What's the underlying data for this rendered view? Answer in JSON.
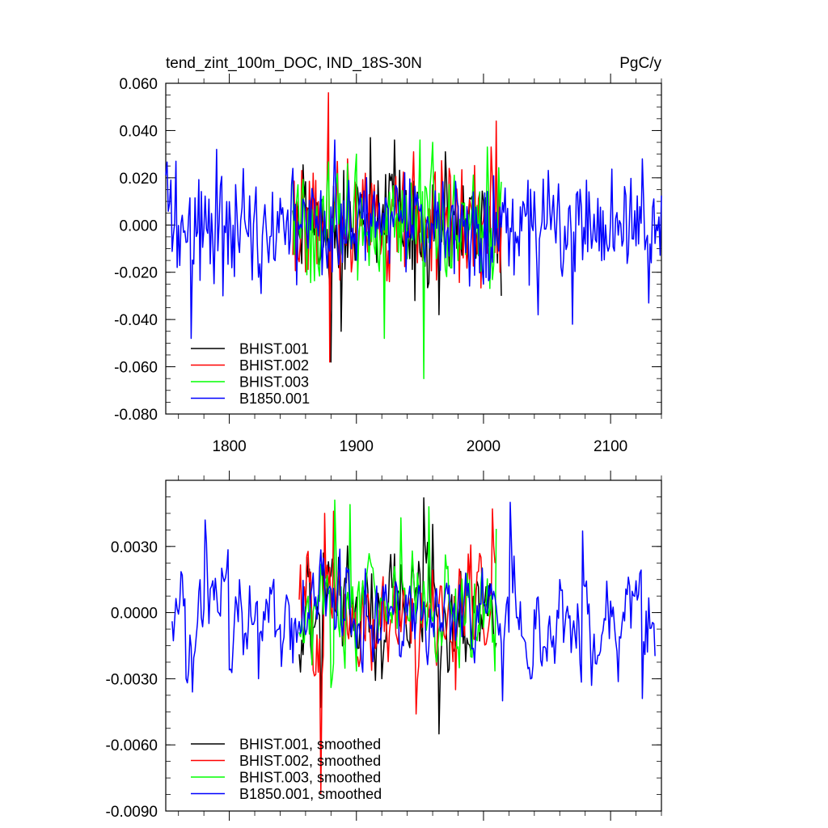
{
  "colors": {
    "BHIST.001": "#000000",
    "BHIST.002": "#ff0000",
    "BHIST.003": "#00ff00",
    "B1850.001": "#0000ff"
  },
  "chart_data": [
    {
      "type": "line",
      "title": "tend_zint_100m_DOC, IND_18S-30N",
      "units": "PgC/y",
      "xlim": [
        1750,
        2140
      ],
      "ylim": [
        -0.08,
        0.06
      ],
      "xticks": [
        1800,
        1900,
        2000,
        2100
      ],
      "xtick_labels": [
        "1800",
        "1900",
        "2000",
        "2100"
      ],
      "yticks": [
        0.06,
        0.04,
        0.02,
        0.0,
        -0.02,
        -0.04,
        -0.06,
        -0.08
      ],
      "ytick_labels": [
        "0.060",
        "0.040",
        "0.020",
        "0.000",
        "-0.020",
        "-0.040",
        "-0.060",
        "-0.080"
      ],
      "legend": [
        "BHIST.001",
        "BHIST.002",
        "BHIST.003",
        "B1850.001"
      ],
      "legend_position": "bottom-left",
      "series": [
        {
          "name": "BHIST.001",
          "x_start": 1850,
          "x_end": 2014,
          "peaks": [
            [
              1880,
              -0.058
            ],
            [
              1888,
              -0.045
            ],
            [
              1911,
              0.037
            ],
            [
              1930,
              0.036
            ],
            [
              1946,
              -0.032
            ],
            [
              1965,
              -0.038
            ],
            [
              1970,
              0.031
            ],
            [
              2014,
              -0.03
            ]
          ]
        },
        {
          "name": "BHIST.002",
          "x_start": 1850,
          "x_end": 2014,
          "peaks": [
            [
              1878,
              0.056
            ],
            [
              1879,
              -0.058
            ],
            [
              1893,
              0.028
            ],
            [
              1945,
              0.031
            ],
            [
              2006,
              0.033
            ],
            [
              2010,
              0.044
            ],
            [
              2013,
              -0.02
            ]
          ]
        },
        {
          "name": "BHIST.003",
          "x_start": 1850,
          "x_end": 2014,
          "peaks": [
            [
              1900,
              0.03
            ],
            [
              1922,
              -0.048
            ],
            [
              1950,
              0.036
            ],
            [
              1953,
              -0.065
            ],
            [
              1960,
              0.035
            ],
            [
              2003,
              0.033
            ]
          ]
        },
        {
          "name": "B1850.001",
          "x_start": 1750,
          "x_end": 2140,
          "peaks": [
            [
              1758,
              0.027
            ],
            [
              1770,
              -0.048
            ],
            [
              1790,
              0.032
            ],
            [
              1795,
              -0.03
            ],
            [
              1825,
              -0.029
            ],
            [
              1850,
              0.024
            ],
            [
              1883,
              0.036
            ],
            [
              2043,
              -0.038
            ],
            [
              2070,
              -0.042
            ],
            [
              2125,
              0.028
            ],
            [
              2130,
              -0.033
            ]
          ]
        }
      ]
    },
    {
      "type": "line",
      "title": "",
      "xlim": [
        1750,
        2140
      ],
      "ylim": [
        -0.009,
        0.006
      ],
      "xticks": [
        1800,
        1900,
        2000,
        2100
      ],
      "yticks": [
        0.003,
        0.0,
        -0.003,
        -0.006,
        -0.009
      ],
      "ytick_labels": [
        "0.0030",
        "0.0000",
        "-0.0030",
        "-0.0060",
        "-0.0090"
      ],
      "legend": [
        "BHIST.001, smoothed",
        "BHIST.002, smoothed",
        "BHIST.003, smoothed",
        "B1850.001, smoothed"
      ],
      "legend_position": "bottom-left",
      "series": [
        {
          "name": "BHIST.001, smoothed",
          "x_start": 1855,
          "x_end": 2010,
          "peaks": [
            [
              1872,
              -0.0043
            ],
            [
              1874,
              0.0027
            ],
            [
              1953,
              0.0052
            ],
            [
              1965,
              -0.0055
            ],
            [
              1960,
              0.004
            ],
            [
              1920,
              -0.003
            ]
          ]
        },
        {
          "name": "BHIST.002, smoothed",
          "x_start": 1855,
          "x_end": 2010,
          "peaks": [
            [
              1872,
              -0.0082
            ],
            [
              1875,
              0.0045
            ],
            [
              1882,
              0.0046
            ],
            [
              1947,
              -0.0046
            ],
            [
              1978,
              -0.0035
            ],
            [
              2007,
              0.0047
            ]
          ]
        },
        {
          "name": "BHIST.003, smoothed",
          "x_start": 1855,
          "x_end": 2010,
          "peaks": [
            [
              1880,
              -0.0034
            ],
            [
              1883,
              0.0051
            ],
            [
              1895,
              0.0049
            ],
            [
              1935,
              0.0043
            ],
            [
              1957,
              0.0048
            ],
            [
              1990,
              -0.002
            ],
            [
              2010,
              0.0038
            ]
          ]
        },
        {
          "name": "B1850.001, smoothed",
          "x_start": 1755,
          "x_end": 2135,
          "peaks": [
            [
              1763,
              0.0017
            ],
            [
              1766,
              -0.003
            ],
            [
              1771,
              -0.0036
            ],
            [
              1781,
              0.0042
            ],
            [
              1800,
              -0.0026
            ],
            [
              1823,
              -0.003
            ],
            [
              2021,
              0.005
            ],
            [
              2015,
              -0.004
            ],
            [
              2050,
              -0.0022
            ],
            [
              2078,
              0.0037
            ],
            [
              2085,
              -0.0033
            ],
            [
              2125,
              -0.0039
            ]
          ]
        }
      ]
    }
  ]
}
